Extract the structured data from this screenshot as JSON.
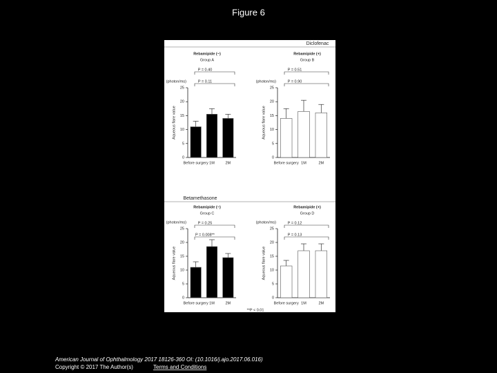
{
  "title": "Figure 6",
  "sections": [
    "Diclofenac",
    "Betamethasone"
  ],
  "footnote": "**P < 0.01",
  "citation": "American Journal of Ophthalmology 2017 18126-360 OI: (10.1016/j.ajo.2017.06.016)",
  "copyright": "Copyright © 2017 The Author(s)",
  "terms_link": "Terms and Conditions",
  "chart_data": [
    {
      "type": "bar",
      "title": "Rebamipide (−)",
      "subtitle": "Group A",
      "annotations": [
        "P = 0.40",
        "P = 0.11"
      ],
      "ylabel": "Aqueous flare value",
      "yunit": "(photon/ms)",
      "categories": [
        "Before surgery",
        "1M",
        "2M"
      ],
      "values": [
        11,
        15.5,
        14
      ],
      "errors": [
        2,
        2,
        1.5
      ],
      "color": "#000000",
      "ylim": [
        0,
        25
      ],
      "yticks": [
        0,
        5,
        10,
        15,
        20,
        25
      ]
    },
    {
      "type": "bar",
      "title": "Rebamipide (+)",
      "subtitle": "Group B",
      "annotations": [
        "P = 0.51",
        "P = 0.90"
      ],
      "ylabel": "Aqueous flare value",
      "yunit": "(photon/ms)",
      "categories": [
        "Before surgery",
        "1M",
        "2M"
      ],
      "values": [
        14,
        16.5,
        16
      ],
      "errors": [
        3.5,
        4,
        3
      ],
      "color": "#ffffff",
      "ylim": [
        0,
        25
      ],
      "yticks": [
        0,
        5,
        10,
        15,
        20,
        25
      ]
    },
    {
      "type": "bar",
      "title": "Rebamipide (−)",
      "subtitle": "Group C",
      "annotations": [
        "P = 0.25",
        "P = 0.008**"
      ],
      "ylabel": "Aqueous flare value",
      "yunit": "(photon/ms)",
      "categories": [
        "Before surgery",
        "1M",
        "2M"
      ],
      "values": [
        11,
        18.5,
        14.5
      ],
      "errors": [
        2,
        2.5,
        1.5
      ],
      "color": "#000000",
      "ylim": [
        0,
        25
      ],
      "yticks": [
        0,
        5,
        10,
        15,
        20,
        25
      ]
    },
    {
      "type": "bar",
      "title": "Rebamipide (+)",
      "subtitle": "Group D",
      "annotations": [
        "P = 0.12",
        "P = 0.13"
      ],
      "ylabel": "Aqueous flare value",
      "yunit": "(photon/ms)",
      "categories": [
        "Before surgery",
        "1M",
        "2M"
      ],
      "values": [
        11.5,
        17,
        17
      ],
      "errors": [
        2,
        2.5,
        2.5
      ],
      "color": "#ffffff",
      "ylim": [
        0,
        25
      ],
      "yticks": [
        0,
        5,
        10,
        15,
        20,
        25
      ]
    }
  ]
}
